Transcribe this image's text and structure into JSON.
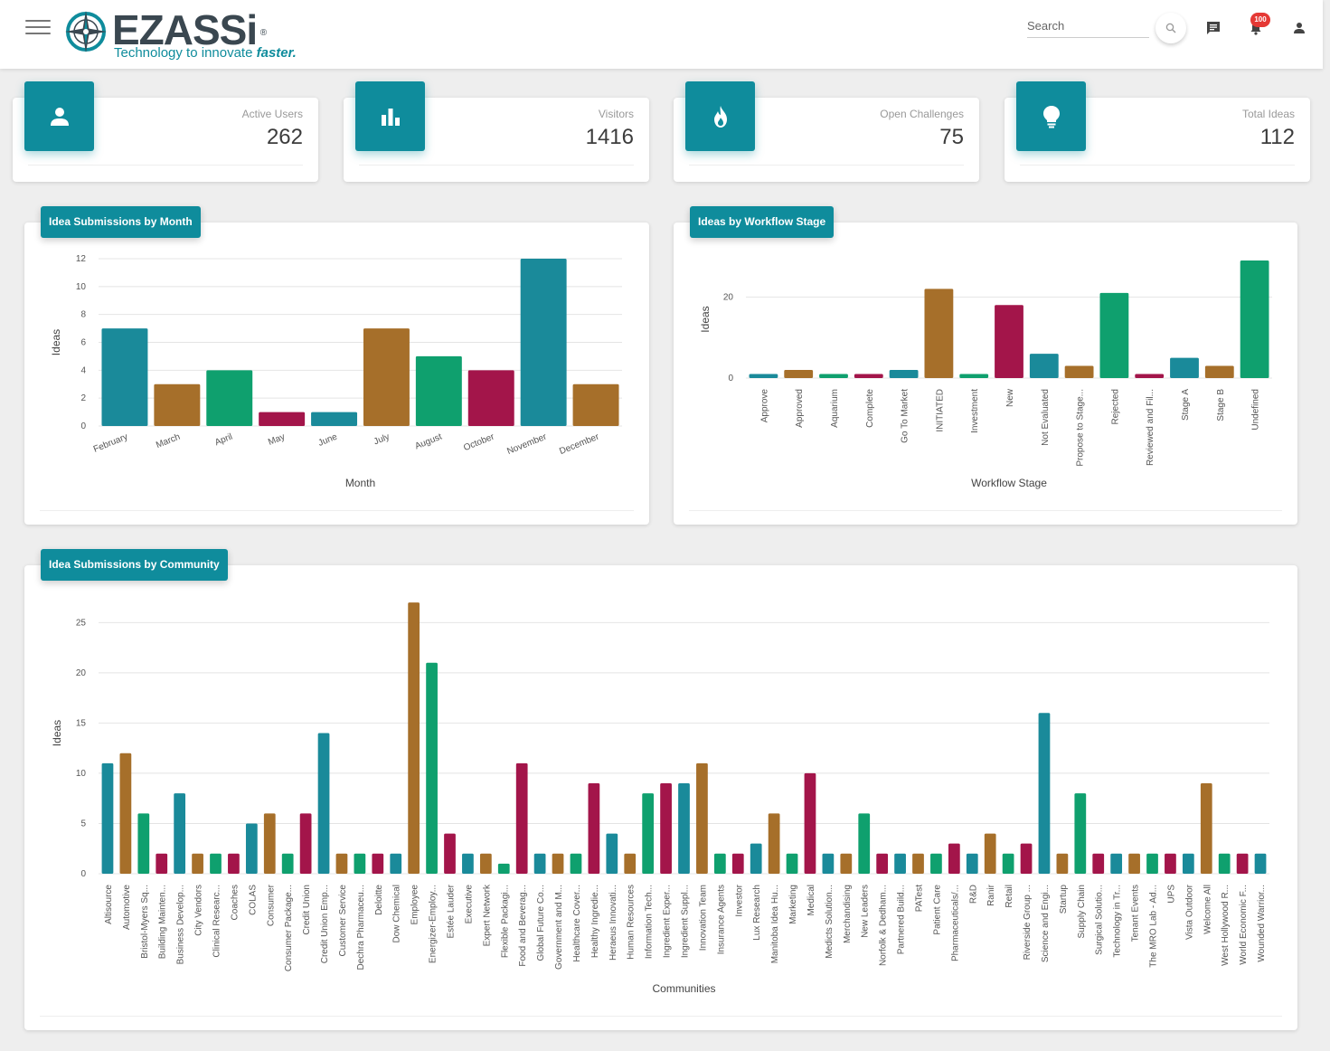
{
  "header": {
    "logo_text": "EZASSi",
    "logo_tagline": "Technology to innovate",
    "logo_tagline_emphasis": "faster.",
    "search_placeholder": "Search",
    "notification_count": "100"
  },
  "stats": [
    {
      "label": "Active Users",
      "value": "262",
      "icon": "person-icon"
    },
    {
      "label": "Visitors",
      "value": "1416",
      "icon": "bar-chart-icon"
    },
    {
      "label": "Open Challenges",
      "value": "75",
      "icon": "flame-icon"
    },
    {
      "label": "Total Ideas",
      "value": "112",
      "icon": "lightbulb-icon"
    }
  ],
  "colors": {
    "teal": "#1a8a9a",
    "brown": "#a66f2a",
    "green": "#0fa06e",
    "crimson": "#a3154a",
    "accent": "#0f8c9c"
  },
  "panels": {
    "month": {
      "title": "Idea Submissions by Month"
    },
    "workflow": {
      "title": "Ideas by Workflow Stage"
    },
    "community": {
      "title": "Idea Submissions by Community"
    }
  },
  "chart_data": [
    {
      "type": "bar",
      "title": "Idea Submissions by Month",
      "xlabel": "Month",
      "ylabel": "Ideas",
      "ylim": [
        0,
        12
      ],
      "yticks": [
        0,
        2,
        4,
        6,
        8,
        10,
        12
      ],
      "grid": true,
      "categories": [
        "February",
        "March",
        "April",
        "May",
        "June",
        "July",
        "August",
        "October",
        "November",
        "December"
      ],
      "values": [
        7,
        3,
        4,
        1,
        1,
        7,
        5,
        4,
        12,
        3
      ]
    },
    {
      "type": "bar",
      "title": "Ideas by Workflow Stage",
      "xlabel": "Workflow Stage",
      "ylabel": "Ideas",
      "ylim": [
        0,
        29
      ],
      "yticks": [
        0,
        20
      ],
      "grid": true,
      "categories": [
        "Approve",
        "Approved",
        "Aquarium",
        "Complete",
        "Go To Market",
        "INITIATED",
        "Investment",
        "New",
        "Not Evaluated",
        "Propose to Stage...",
        "Rejected",
        "Reviewed and Fil...",
        "Stage A",
        "Stage B",
        "Undefined"
      ],
      "values": [
        1,
        2,
        1,
        1,
        2,
        22,
        1,
        18,
        6,
        3,
        21,
        1,
        5,
        3,
        29
      ]
    },
    {
      "type": "bar",
      "title": "Idea Submissions by Community",
      "xlabel": "Communities",
      "ylabel": "Ideas",
      "ylim": [
        0,
        28
      ],
      "yticks": [
        0,
        5,
        10,
        15,
        20,
        25
      ],
      "grid": true,
      "categories": [
        "Altisource",
        "Automotive",
        "Bristol-Myers Sq...",
        "Building Mainten...",
        "Business Develop...",
        "City Vendors",
        "Clinical Researc...",
        "Coaches",
        "COLAS",
        "Consumer",
        "Consumer Package...",
        "Credit Union",
        "Credit Union Emp...",
        "Customer Service",
        "Dechra Pharmaceu...",
        "Deloitte",
        "Dow Chemical",
        "Employee",
        "Energizer-Employ...",
        "Estée Lauder",
        "Executive",
        "Expert Network",
        "Flexible Packagi...",
        "Food and Beverag...",
        "Global Future Co...",
        "Government and M...",
        "Healthcare Cover...",
        "Healthy Ingredie...",
        "Heraeus Innovati...",
        "Human Resources",
        "Information Tech...",
        "Ingredient Exper...",
        "Ingredient Suppl...",
        "Innovation Team",
        "Insurance Agents",
        "Investor",
        "Lux Research",
        "Manitoba Idea Hu...",
        "Marketing",
        "Medical",
        "Medicts Solution...",
        "Merchandising",
        "New Leaders",
        "Norfolk & Dedham...",
        "Partnered Build...",
        "PATest",
        "Patient Care",
        "Pharmaceuticals/...",
        "R&D",
        "Ranir",
        "Retail",
        "Riverside Group ...",
        "Science and Engi...",
        "Startup",
        "Supply Chain",
        "Surgical Solutio...",
        "Technology in Tr...",
        "Tenant Events",
        "The MRO Lab - Ad...",
        "UPS",
        "Vista Outdoor",
        "Welcome All",
        "West Hollywood R...",
        "World Economic F...",
        "Wounded Warrior..."
      ],
      "values": [
        11,
        12,
        6,
        2,
        8,
        2,
        2,
        2,
        5,
        6,
        2,
        6,
        14,
        2,
        2,
        2,
        2,
        27,
        21,
        4,
        2,
        2,
        1,
        11,
        2,
        2,
        2,
        9,
        4,
        2,
        8,
        9,
        9,
        11,
        2,
        2,
        3,
        6,
        2,
        10,
        2,
        2,
        6,
        2,
        2,
        2,
        2,
        3,
        2,
        4,
        2,
        3,
        16,
        2,
        8,
        2,
        2,
        2,
        2,
        2,
        2,
        9,
        2,
        2,
        2
      ]
    }
  ]
}
